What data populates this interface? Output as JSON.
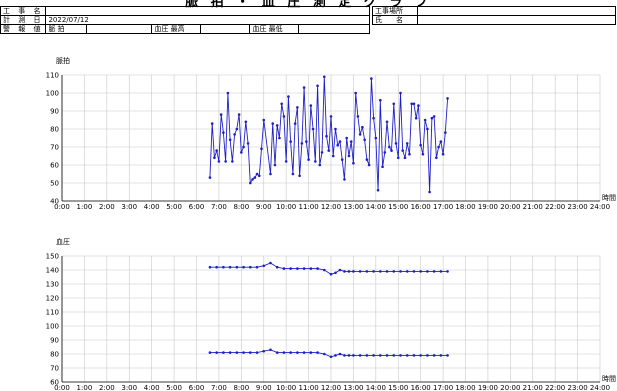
{
  "header": {
    "title": "脈 拍 ・ 血 圧 測 定 グ ラ フ",
    "construction_name_label": "工 事 名",
    "construction_name_value": "",
    "measurement_date_label": "計 測 日",
    "measurement_date_value": "2022/07/12",
    "alarm_value_label": "警 報 値",
    "alarm_pulse_label": "脈 拍",
    "alarm_pulse_value": "",
    "alarm_bp_max_label": "血圧 最高",
    "alarm_bp_max_value": "",
    "alarm_bp_min_label": "血圧 最低",
    "alarm_bp_min_value": "",
    "site_label": "工事場所",
    "site_value": "",
    "name_label": "氏　　名",
    "name_value": ""
  },
  "chart_data": [
    {
      "type": "line",
      "ylabel": "脈拍",
      "xlabel": "時間",
      "ylim": [
        40,
        110
      ],
      "yticks": [
        40,
        50,
        60,
        70,
        80,
        90,
        100,
        110
      ],
      "xlim": [
        0,
        24
      ],
      "xtick_labels": [
        "0:00",
        "1:00",
        "2:00",
        "3:00",
        "4:00",
        "5:00",
        "6:00",
        "7:00",
        "8:00",
        "9:00",
        "10:00",
        "11:00",
        "12:00",
        "13:00",
        "14:00",
        "15:00",
        "16:00",
        "17:00",
        "18:00",
        "19:00",
        "20:00",
        "21:00",
        "22:00",
        "23:00",
        "24:00"
      ],
      "grid": true,
      "color": "#1f1fc8",
      "series": [
        {
          "x": [
            6.6,
            6.7,
            6.8,
            6.9,
            7.0,
            7.1,
            7.2,
            7.3,
            7.4,
            7.5,
            7.6,
            7.7,
            7.8,
            7.9,
            8.0,
            8.1,
            8.2,
            8.3,
            8.4,
            8.5,
            8.6,
            8.7,
            8.8,
            8.9,
            9.0,
            9.3,
            9.4,
            9.5,
            9.6,
            9.7,
            9.8,
            9.9,
            10.0,
            10.1,
            10.2,
            10.3,
            10.4,
            10.5,
            10.6,
            10.7,
            10.8,
            10.9,
            11.0,
            11.1,
            11.2,
            11.3,
            11.4,
            11.5,
            11.6,
            11.7,
            11.8,
            11.9,
            12.0,
            12.1,
            12.2,
            12.3,
            12.4,
            12.5,
            12.6,
            12.7,
            12.8,
            12.9,
            13.0,
            13.1,
            13.2,
            13.3,
            13.4,
            13.5,
            13.6,
            13.7,
            13.8,
            13.9,
            14.0,
            14.1,
            14.2,
            14.3,
            14.4,
            14.5,
            14.6,
            14.7,
            14.8,
            14.9,
            15.0,
            15.1,
            15.2,
            15.3,
            15.4,
            15.5,
            15.6,
            15.7,
            15.8,
            15.9,
            16.0,
            16.1,
            16.2,
            16.3,
            16.4,
            16.5,
            16.6,
            16.7,
            16.8,
            16.9,
            17.0,
            17.1,
            17.2
          ],
          "y": [
            53,
            83,
            64,
            68,
            62,
            88,
            78,
            62,
            100,
            74,
            62,
            77,
            80,
            88,
            67,
            70,
            84,
            72,
            50,
            52,
            53,
            55,
            54,
            69,
            85,
            55,
            83,
            60,
            82,
            75,
            94,
            87,
            62,
            98,
            73,
            55,
            83,
            92,
            54,
            72,
            103,
            73,
            63,
            93,
            80,
            62,
            104,
            60,
            67,
            109,
            76,
            68,
            87,
            65,
            80,
            71,
            73,
            63,
            52,
            75,
            65,
            73,
            61,
            100,
            87,
            77,
            81,
            74,
            63,
            60,
            108,
            86,
            75,
            46,
            96,
            59,
            67,
            84,
            70,
            68,
            94,
            72,
            64,
            100,
            68,
            64,
            72,
            66,
            94,
            94,
            86,
            93,
            71,
            66,
            85,
            80,
            45,
            86,
            87,
            64,
            70,
            73,
            66,
            78,
            97
          ]
        }
      ]
    },
    {
      "type": "line",
      "ylabel": "血圧",
      "xlabel": "時間",
      "ylim": [
        60,
        150
      ],
      "yticks": [
        60,
        70,
        80,
        90,
        100,
        110,
        120,
        130,
        140,
        150
      ],
      "xlim": [
        0,
        24
      ],
      "xtick_labels": [
        "0:00",
        "1:00",
        "2:00",
        "3:00",
        "4:00",
        "5:00",
        "6:00",
        "7:00",
        "8:00",
        "9:00",
        "10:00",
        "11:00",
        "12:00",
        "13:00",
        "14:00",
        "15:00",
        "16:00",
        "17:00",
        "18:00",
        "19:00",
        "20:00",
        "21:00",
        "22:00",
        "23:00",
        "24:00"
      ],
      "grid": true,
      "color": "#1f1fc8",
      "series": [
        {
          "x": [
            6.6,
            6.9,
            7.2,
            7.5,
            7.8,
            8.1,
            8.4,
            8.7,
            9.0,
            9.3,
            9.6,
            9.9,
            10.2,
            10.5,
            10.8,
            11.1,
            11.4,
            11.7,
            12.0,
            12.2,
            12.4,
            12.6,
            12.8,
            13.0,
            13.3,
            13.6,
            13.9,
            14.2,
            14.5,
            14.8,
            15.1,
            15.4,
            15.7,
            16.0,
            16.3,
            16.6,
            16.9,
            17.2
          ],
          "y": [
            142,
            142,
            142,
            142,
            142,
            142,
            142,
            142,
            143,
            145,
            142,
            141,
            141,
            141,
            141,
            141,
            141,
            140,
            137,
            138,
            140,
            139,
            139,
            139,
            139,
            139,
            139,
            139,
            139,
            139,
            139,
            139,
            139,
            139,
            139,
            139,
            139,
            139
          ]
        },
        {
          "x": [
            6.6,
            6.9,
            7.2,
            7.5,
            7.8,
            8.1,
            8.4,
            8.7,
            9.0,
            9.3,
            9.6,
            9.9,
            10.2,
            10.5,
            10.8,
            11.1,
            11.4,
            11.7,
            12.0,
            12.2,
            12.4,
            12.6,
            12.8,
            13.0,
            13.3,
            13.6,
            13.9,
            14.2,
            14.5,
            14.8,
            15.1,
            15.4,
            15.7,
            16.0,
            16.3,
            16.6,
            16.9,
            17.2
          ],
          "y": [
            81,
            81,
            81,
            81,
            81,
            81,
            81,
            81,
            82,
            83,
            81,
            81,
            81,
            81,
            81,
            81,
            81,
            80,
            78,
            79,
            80,
            79,
            79,
            79,
            79,
            79,
            79,
            79,
            79,
            79,
            79,
            79,
            79,
            79,
            79,
            79,
            79,
            79
          ]
        }
      ]
    }
  ]
}
